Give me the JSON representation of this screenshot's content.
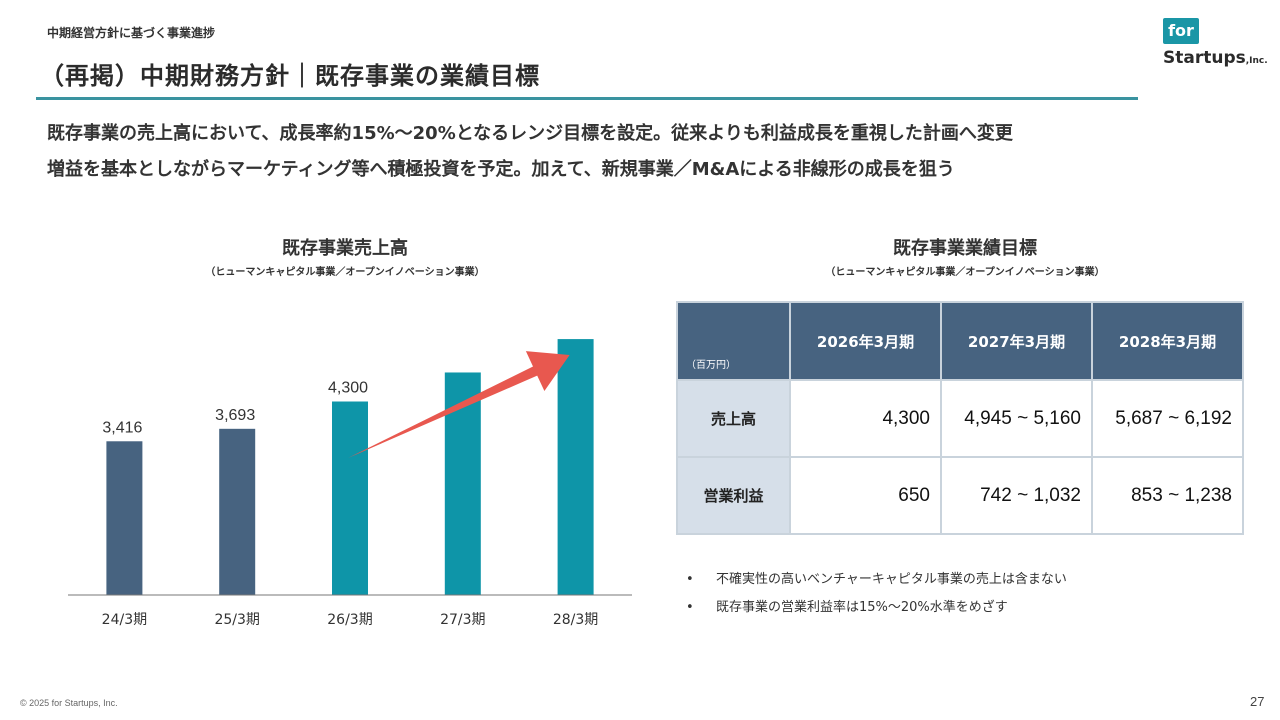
{
  "header": {
    "breadcrumb": "中期経営方針に基づく事業進捗",
    "title": "（再掲）中期財務方針｜既存事業の業績目標",
    "logo_text": "for",
    "logo_word": "Startups",
    "logo_inc": ",Inc."
  },
  "lead": {
    "line1": "既存事業の売上高において、成長率約15%～20%となるレンジ目標を設定。従来よりも利益成長を重視した計画へ変更",
    "line2": "増益を基本としながらマーケティング等へ積極投資を予定。加えて、新規事業／M&Aによる非線形の成長を狙う"
  },
  "chart_data": {
    "type": "bar",
    "title": "既存事業売上高",
    "subtitle": "（ヒューマンキャピタル事業／オープンイノベーション事業）",
    "categories": [
      "24/3期",
      "25/3期",
      "26/3期",
      "27/3期",
      "28/3期"
    ],
    "values": [
      3416,
      3693,
      4300,
      4945,
      5687
    ],
    "data_labels": [
      "3,416",
      "3,693",
      "4,300",
      "",
      ""
    ],
    "bar_colors": [
      "#476380",
      "#476380",
      "#0e95a8",
      "#0e95a8",
      "#0e95a8"
    ],
    "ylim": [
      0,
      6000
    ],
    "grid": false,
    "annotation": "red growth arrow from 26/3期 toward 28/3期",
    "arrow_color": "#e8584f"
  },
  "table": {
    "title": "既存事業業績目標",
    "subtitle": "（ヒューマンキャピタル事業／オープンイノベーション事業）",
    "unit": "（百万円）",
    "columns": [
      "2026年3月期",
      "2027年3月期",
      "2028年3月期"
    ],
    "rows": [
      {
        "label": "売上高",
        "values": [
          "4,300",
          "4,945 ~ 5,160",
          "5,687 ~ 6,192"
        ]
      },
      {
        "label": "営業利益",
        "values": [
          "650",
          "742 ~ 1,032",
          "853 ~ 1,238"
        ]
      }
    ]
  },
  "notes": [
    "不確実性の高いベンチャーキャピタル事業の売上は含まない",
    "既存事業の営業利益率は15%～20%水準をめざす"
  ],
  "footer": {
    "copyright": "© 2025 for Startups, Inc.",
    "page": "27"
  },
  "colors": {
    "accent_teal": "#0e95a8",
    "navy": "#476380",
    "rule": "#3a93a0",
    "row_header_bg": "#d6dfe9"
  }
}
